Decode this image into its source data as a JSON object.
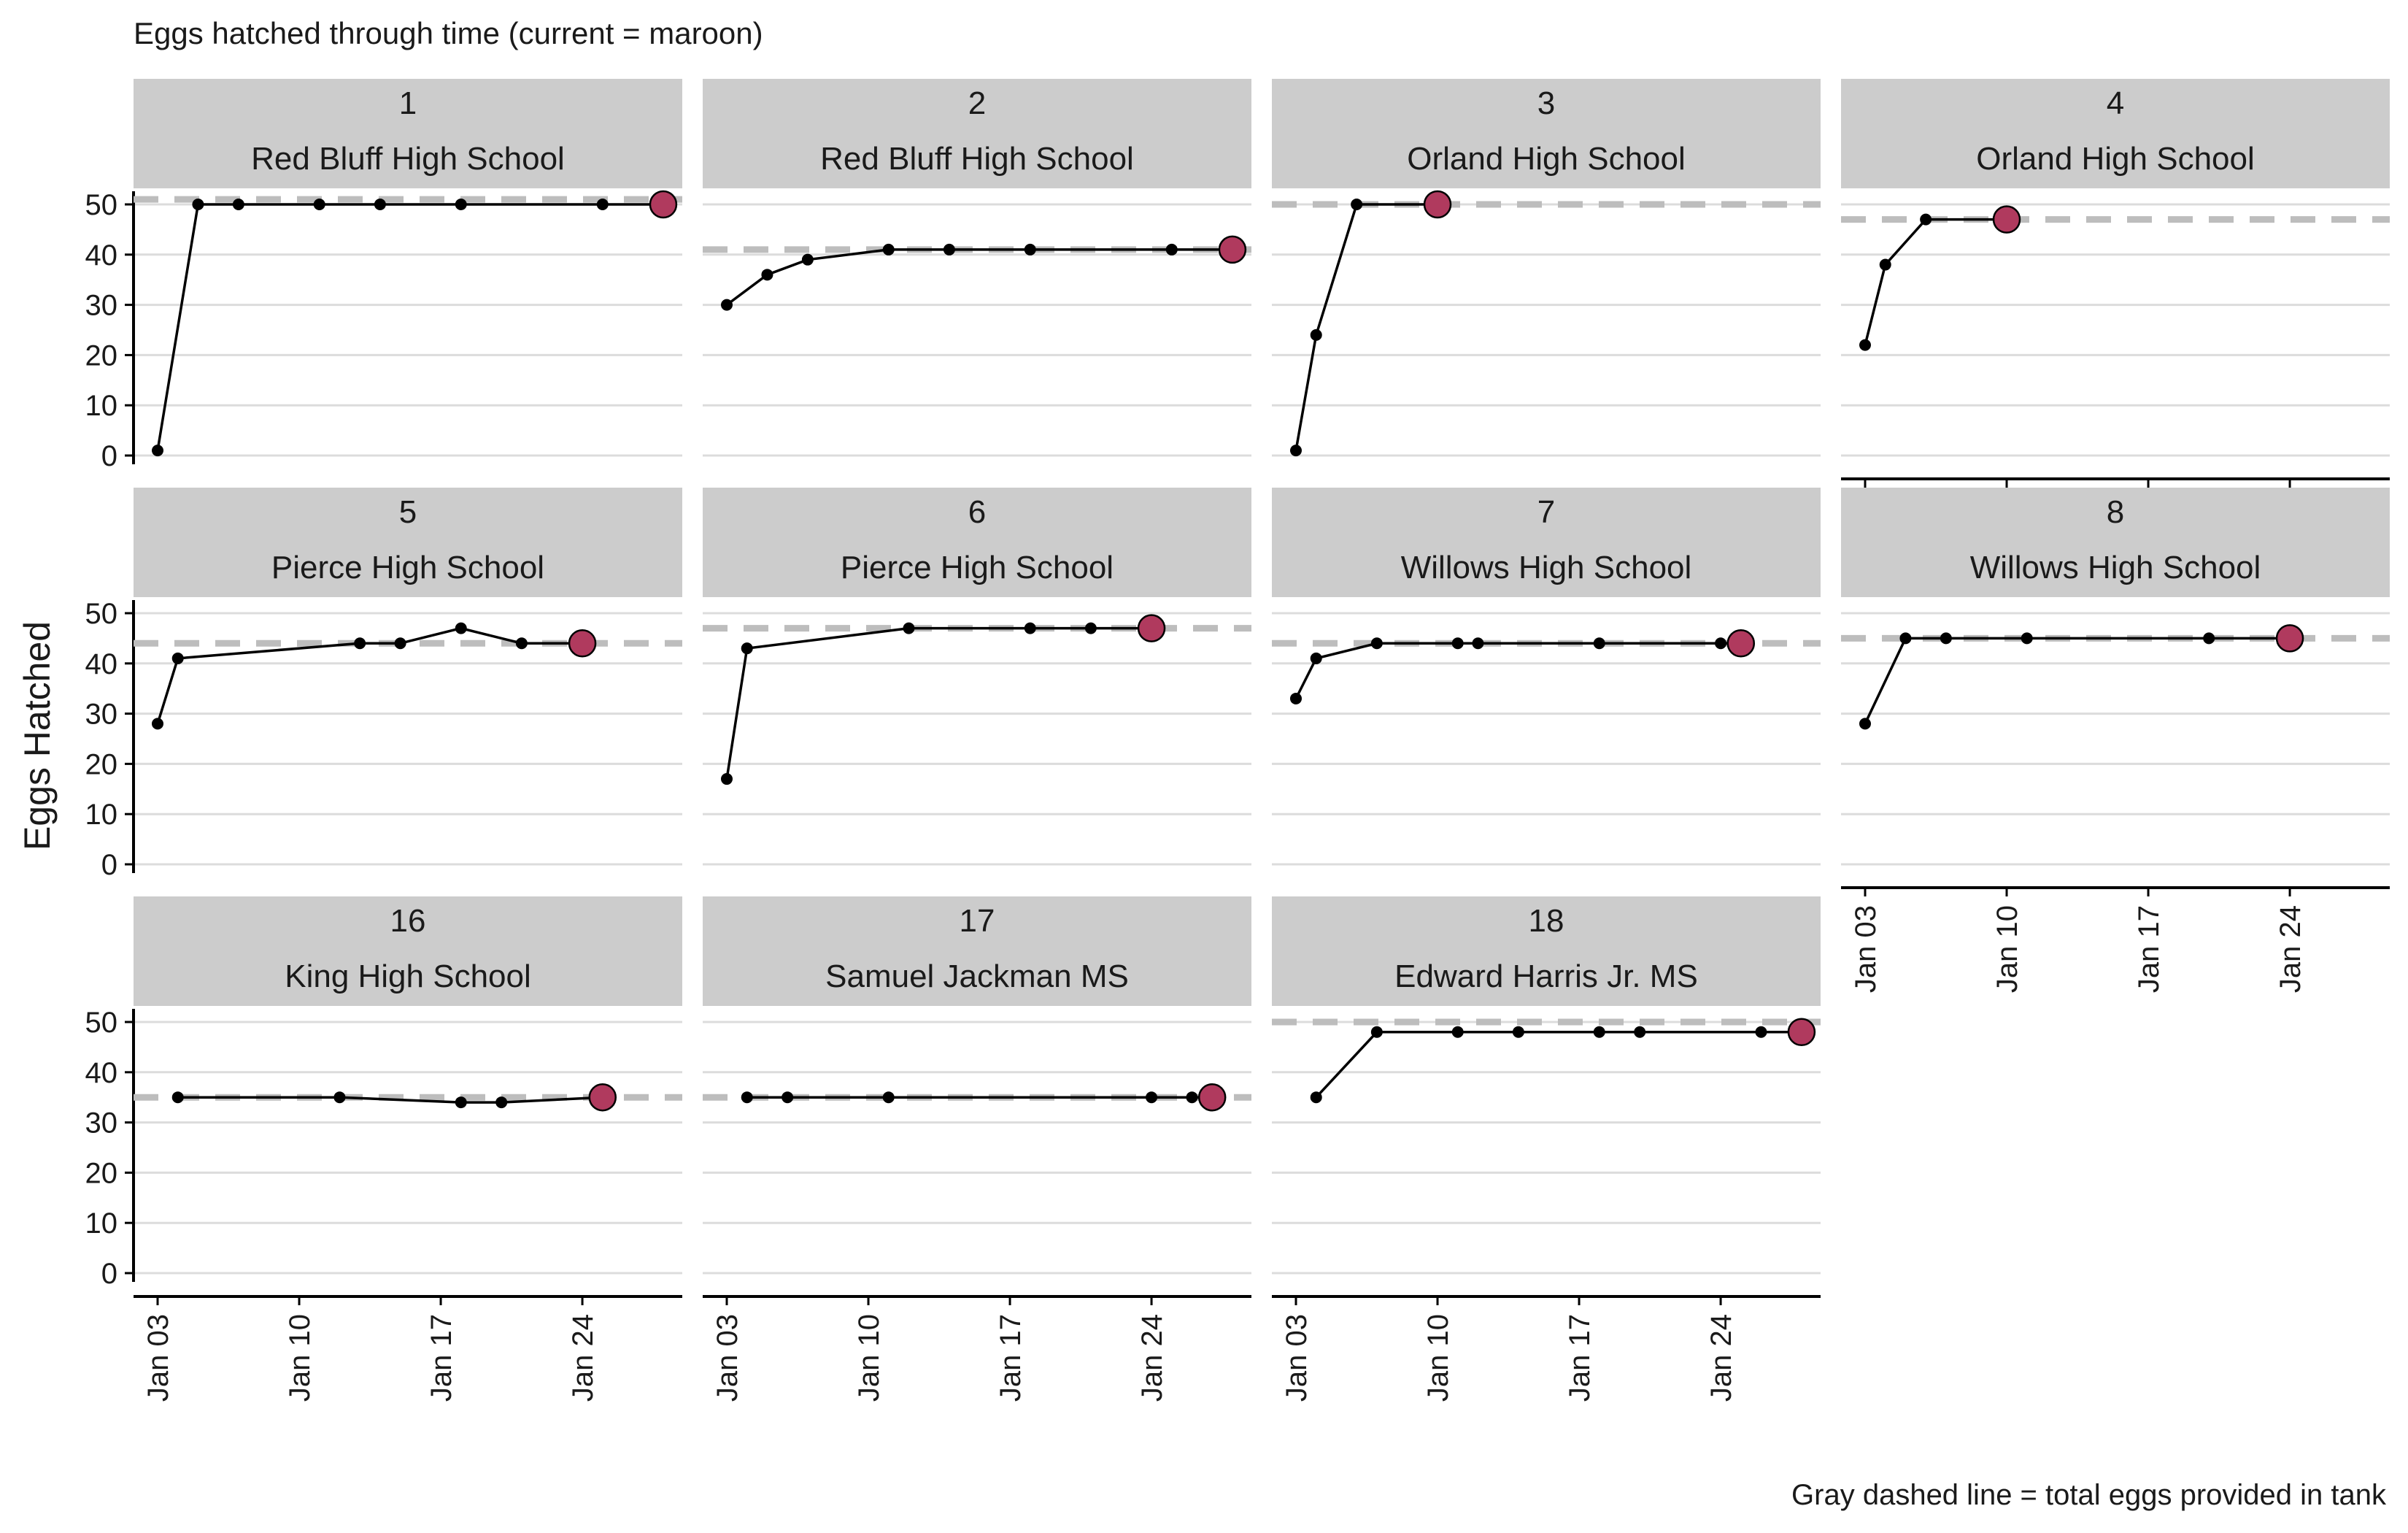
{
  "chart_data": {
    "type": "line",
    "title": "Eggs hatched through time (current = maroon)",
    "ylabel": "Eggs Hatched",
    "caption": "Gray dashed line = total eggs provided in tank",
    "ylim": [
      0,
      50
    ],
    "y_ticks": [
      0,
      10,
      20,
      30,
      40,
      50
    ],
    "x_range_days": [
      "2025-01-02",
      "2025-01-30"
    ],
    "x_ticks": [
      {
        "date": "2025-01-03",
        "label": "Jan 03"
      },
      {
        "date": "2025-01-10",
        "label": "Jan 10"
      },
      {
        "date": "2025-01-17",
        "label": "Jan 17"
      },
      {
        "date": "2025-01-24",
        "label": "Jan 24"
      }
    ],
    "grid": "horizontal major lines",
    "colors": {
      "line": "#000000",
      "point": "#000000",
      "current_point": "#b03a5e",
      "total_line": "#bdbdbd",
      "strip_background": "#cccccc",
      "grid": "#dcdcdc"
    },
    "panels": [
      {
        "tank": "1",
        "school": "Red Bluff High School",
        "total_eggs": 51,
        "points": [
          [
            "2025-01-03",
            1
          ],
          [
            "2025-01-05",
            50
          ],
          [
            "2025-01-07",
            50
          ],
          [
            "2025-01-11",
            50
          ],
          [
            "2025-01-14",
            50
          ],
          [
            "2025-01-18",
            50
          ],
          [
            "2025-01-25",
            50
          ],
          [
            "2025-01-28",
            50
          ]
        ]
      },
      {
        "tank": "2",
        "school": "Red Bluff High School",
        "total_eggs": 41,
        "points": [
          [
            "2025-01-03",
            30
          ],
          [
            "2025-01-05",
            36
          ],
          [
            "2025-01-07",
            39
          ],
          [
            "2025-01-11",
            41
          ],
          [
            "2025-01-14",
            41
          ],
          [
            "2025-01-18",
            41
          ],
          [
            "2025-01-25",
            41
          ],
          [
            "2025-01-28",
            41
          ]
        ]
      },
      {
        "tank": "3",
        "school": "Orland High School",
        "total_eggs": 50,
        "points": [
          [
            "2025-01-03",
            1
          ],
          [
            "2025-01-04",
            24
          ],
          [
            "2025-01-06",
            50
          ],
          [
            "2025-01-10",
            50
          ]
        ]
      },
      {
        "tank": "4",
        "school": "Orland High School",
        "total_eggs": 47,
        "points": [
          [
            "2025-01-03",
            22
          ],
          [
            "2025-01-04",
            38
          ],
          [
            "2025-01-06",
            47
          ],
          [
            "2025-01-10",
            47
          ]
        ]
      },
      {
        "tank": "5",
        "school": "Pierce High School",
        "total_eggs": 44,
        "points": [
          [
            "2025-01-03",
            28
          ],
          [
            "2025-01-04",
            41
          ],
          [
            "2025-01-13",
            44
          ],
          [
            "2025-01-15",
            44
          ],
          [
            "2025-01-18",
            47
          ],
          [
            "2025-01-21",
            44
          ],
          [
            "2025-01-24",
            44
          ]
        ]
      },
      {
        "tank": "6",
        "school": "Pierce High School",
        "total_eggs": 47,
        "points": [
          [
            "2025-01-03",
            17
          ],
          [
            "2025-01-04",
            43
          ],
          [
            "2025-01-12",
            47
          ],
          [
            "2025-01-18",
            47
          ],
          [
            "2025-01-21",
            47
          ],
          [
            "2025-01-24",
            47
          ]
        ]
      },
      {
        "tank": "7",
        "school": "Willows High School",
        "total_eggs": 44,
        "points": [
          [
            "2025-01-03",
            33
          ],
          [
            "2025-01-04",
            41
          ],
          [
            "2025-01-07",
            44
          ],
          [
            "2025-01-11",
            44
          ],
          [
            "2025-01-12",
            44
          ],
          [
            "2025-01-18",
            44
          ],
          [
            "2025-01-24",
            44
          ],
          [
            "2025-01-25",
            44
          ]
        ]
      },
      {
        "tank": "8",
        "school": "Willows High School",
        "total_eggs": 45,
        "points": [
          [
            "2025-01-03",
            28
          ],
          [
            "2025-01-05",
            45
          ],
          [
            "2025-01-07",
            45
          ],
          [
            "2025-01-11",
            45
          ],
          [
            "2025-01-20",
            45
          ],
          [
            "2025-01-24",
            45
          ]
        ]
      },
      {
        "tank": "16",
        "school": "King High School",
        "total_eggs": 35,
        "points": [
          [
            "2025-01-04",
            35
          ],
          [
            "2025-01-12",
            35
          ],
          [
            "2025-01-18",
            34
          ],
          [
            "2025-01-20",
            34
          ],
          [
            "2025-01-25",
            35
          ]
        ]
      },
      {
        "tank": "17",
        "school": "Samuel Jackman MS",
        "total_eggs": 35,
        "points": [
          [
            "2025-01-04",
            35
          ],
          [
            "2025-01-06",
            35
          ],
          [
            "2025-01-11",
            35
          ],
          [
            "2025-01-24",
            35
          ],
          [
            "2025-01-26",
            35
          ],
          [
            "2025-01-27",
            35
          ]
        ]
      },
      {
        "tank": "18",
        "school": "Edward Harris Jr. MS",
        "total_eggs": 50,
        "points": [
          [
            "2025-01-04",
            35
          ],
          [
            "2025-01-07",
            48
          ],
          [
            "2025-01-11",
            48
          ],
          [
            "2025-01-14",
            48
          ],
          [
            "2025-01-18",
            48
          ],
          [
            "2025-01-20",
            48
          ],
          [
            "2025-01-26",
            48
          ],
          [
            "2025-01-28",
            48
          ]
        ]
      }
    ]
  }
}
